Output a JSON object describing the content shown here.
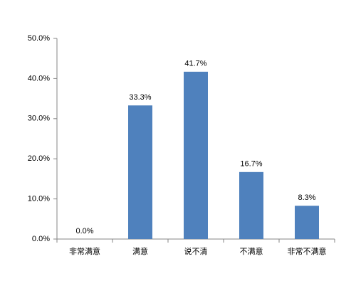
{
  "chart_data": {
    "type": "bar",
    "categories": [
      "非常满意",
      "满意",
      "说不清",
      "不满意",
      "非常不满意"
    ],
    "values": [
      0,
      33.3,
      41.7,
      16.7,
      8.3
    ],
    "value_labels": [
      "0.0%",
      "33.3%",
      "41.7%",
      "16.7%",
      "8.3%"
    ],
    "color": "#4f81bd",
    "ylim": [
      0,
      50
    ],
    "yticks": [
      {
        "value": 0,
        "label": "0.0%"
      },
      {
        "value": 10,
        "label": "10.0%"
      },
      {
        "value": 20,
        "label": "20.0%"
      },
      {
        "value": 30,
        "label": "30.0%"
      },
      {
        "value": 40,
        "label": "40.0%"
      },
      {
        "value": 50,
        "label": "50.0%"
      }
    ],
    "grid": false
  }
}
